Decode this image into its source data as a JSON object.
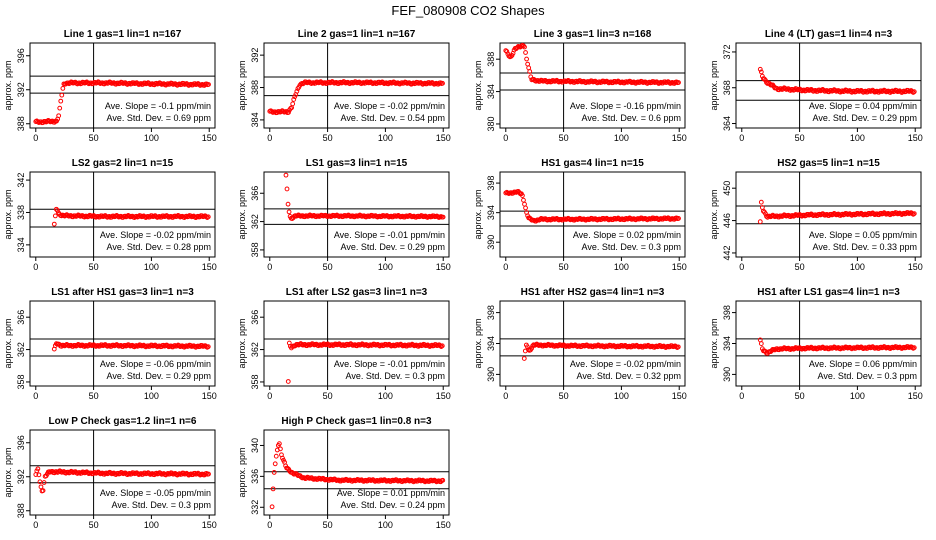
{
  "figure": {
    "title": "FEF_080908  CO2 Shapes"
  },
  "chart_data": [
    {
      "type": "scatter",
      "title": "Line 1 gas=1 lin=1 n=167",
      "ylabel": "approx. ppm",
      "xlim": [
        -5,
        155
      ],
      "ylim": [
        387.5,
        397.5
      ],
      "xticks": [
        0,
        50,
        100,
        150
      ],
      "yticks": [
        388,
        392,
        396
      ],
      "hlines": [
        393.6,
        391.6
      ],
      "vline": 50,
      "slope_text": "Ave. Slope = -0.1  ppm/min",
      "std_text": "Ave. Std. Dev. = 0.69  ppm",
      "shape": [
        [
          0,
          388.2
        ],
        [
          18,
          388.3
        ],
        [
          20,
          389
        ],
        [
          22,
          391
        ],
        [
          24,
          392.6
        ],
        [
          26,
          392.8
        ],
        [
          60,
          392.8
        ],
        [
          100,
          392.7
        ],
        [
          150,
          392.6
        ]
      ],
      "color": "#ff0000"
    },
    {
      "type": "scatter",
      "title": "Line 2 gas=1 lin=1 n=167",
      "ylabel": "approx. ppm",
      "xlim": [
        -5,
        155
      ],
      "ylim": [
        383,
        393.5
      ],
      "xticks": [
        0,
        50,
        100,
        150
      ],
      "yticks": [
        384,
        388,
        392
      ],
      "hlines": [
        389.3,
        387
      ],
      "vline": 50,
      "slope_text": "Ave. Slope = -0.02  ppm/min",
      "std_text": "Ave. Std. Dev. = 0.54  ppm",
      "shape": [
        [
          0,
          385
        ],
        [
          16,
          385
        ],
        [
          19,
          385.6
        ],
        [
          22,
          387
        ],
        [
          26,
          388.4
        ],
        [
          30,
          388.6
        ],
        [
          80,
          388.6
        ],
        [
          150,
          388.5
        ]
      ],
      "color": "#ff0000"
    },
    {
      "type": "scatter",
      "title": "Line 3 gas=1 lin=3 n=168",
      "ylabel": "approx. ppm",
      "xlim": [
        -5,
        155
      ],
      "ylim": [
        379.5,
        390
      ],
      "xticks": [
        0,
        50,
        100,
        150
      ],
      "yticks": [
        380,
        384,
        388
      ],
      "hlines": [
        386.3,
        384.2
      ],
      "vline": 50,
      "slope_text": "Ave. Slope = -0.16  ppm/min",
      "std_text": "Ave. Std. Dev. = 0.6  ppm",
      "shape": [
        [
          0,
          389
        ],
        [
          4,
          388.2
        ],
        [
          8,
          389.3
        ],
        [
          12,
          389.5
        ],
        [
          16,
          389.8
        ],
        [
          18,
          388
        ],
        [
          20,
          386.8
        ],
        [
          22,
          385.5
        ],
        [
          30,
          385.3
        ],
        [
          80,
          385.2
        ],
        [
          150,
          385.1
        ]
      ],
      "color": "#ff0000"
    },
    {
      "type": "scatter",
      "title": "Line 4 (LT) gas=1 lin=4 n=3",
      "ylabel": "approx. ppm",
      "xlim": [
        -5,
        155
      ],
      "ylim": [
        363.5,
        373
      ],
      "xticks": [
        0,
        50,
        100,
        150
      ],
      "yticks": [
        364,
        368,
        372
      ],
      "hlines": [
        368.8,
        366.6
      ],
      "vline": 50,
      "slope_text": "Ave. Slope = 0.04  ppm/min",
      "std_text": "Ave. Std. Dev. = 0.29  ppm",
      "shape": [
        [
          16,
          370
        ],
        [
          18,
          369.2
        ],
        [
          22,
          368.6
        ],
        [
          30,
          367.9
        ],
        [
          60,
          367.7
        ],
        [
          100,
          367.6
        ],
        [
          150,
          367.6
        ]
      ],
      "color": "#ff0000"
    },
    {
      "type": "scatter",
      "title": "LS2 gas=2 lin=1 n=15",
      "ylabel": "approx. ppm",
      "xlim": [
        -5,
        155
      ],
      "ylim": [
        332.5,
        343
      ],
      "xticks": [
        0,
        50,
        100,
        150
      ],
      "yticks": [
        334,
        338,
        342
      ],
      "hlines": [
        338.4,
        336.2
      ],
      "vline": 50,
      "slope_text": "Ave. Slope = -0.02  ppm/min",
      "std_text": "Ave. Std. Dev. = 0.28  ppm",
      "shape": [
        [
          16,
          336.5
        ],
        [
          18,
          338.6
        ],
        [
          20,
          337.8
        ],
        [
          24,
          337.6
        ],
        [
          60,
          337.5
        ],
        [
          150,
          337.5
        ]
      ],
      "color": "#ff0000"
    },
    {
      "type": "scatter",
      "title": "LS1 gas=3 lin=1 n=15",
      "ylabel": "approx. ppm",
      "xlim": [
        -5,
        155
      ],
      "ylim": [
        357,
        369
      ],
      "xticks": [
        0,
        50,
        100,
        150
      ],
      "yticks": [
        358,
        362,
        366
      ],
      "hlines": [
        363.8,
        361.6
      ],
      "vline": 50,
      "slope_text": "Ave. Slope = -0.01  ppm/min",
      "std_text": "Ave. Std. Dev. = 0.29  ppm",
      "shape": [
        [
          14,
          368.5
        ],
        [
          16,
          364
        ],
        [
          18,
          362.4
        ],
        [
          22,
          362.8
        ],
        [
          60,
          362.8
        ],
        [
          150,
          362.7
        ]
      ],
      "color": "#ff0000"
    },
    {
      "type": "scatter",
      "title": "HS1 gas=4 lin=1 n=15",
      "ylabel": "approx. ppm",
      "xlim": [
        -5,
        155
      ],
      "ylim": [
        388,
        399.5
      ],
      "xticks": [
        0,
        50,
        100,
        150
      ],
      "yticks": [
        390,
        394,
        398
      ],
      "hlines": [
        394.2,
        392.2
      ],
      "vline": 50,
      "slope_text": "Ave. Slope = 0.02  ppm/min",
      "std_text": "Ave. Std. Dev. = 0.3  ppm",
      "shape": [
        [
          0,
          396.6
        ],
        [
          10,
          396.8
        ],
        [
          14,
          396.5
        ],
        [
          16,
          395.4
        ],
        [
          18,
          394
        ],
        [
          20,
          393.2
        ],
        [
          24,
          392.9
        ],
        [
          30,
          393.1
        ],
        [
          60,
          393.1
        ],
        [
          150,
          393.2
        ]
      ],
      "color": "#ff0000"
    },
    {
      "type": "scatter",
      "title": "HS2 gas=5 lin=1 n=15",
      "ylabel": "approx. ppm",
      "xlim": [
        -5,
        155
      ],
      "ylim": [
        441.5,
        452
      ],
      "xticks": [
        0,
        50,
        100,
        150
      ],
      "yticks": [
        442,
        446,
        450
      ],
      "hlines": [
        447.8,
        445.6
      ],
      "vline": 50,
      "slope_text": "Ave. Slope = 0.05  ppm/min",
      "std_text": "Ave. Std. Dev. = 0.33  ppm",
      "shape": [
        [
          16,
          445.8
        ],
        [
          17,
          448.4
        ],
        [
          18,
          447.4
        ],
        [
          22,
          446.5
        ],
        [
          60,
          446.7
        ],
        [
          150,
          446.9
        ]
      ],
      "color": "#ff0000"
    },
    {
      "type": "scatter",
      "title": "LS1 after HS1 gas=3 lin=1 n=3",
      "ylabel": "approx. ppm",
      "xlim": [
        -5,
        155
      ],
      "ylim": [
        357.5,
        368
      ],
      "xticks": [
        0,
        50,
        100,
        150
      ],
      "yticks": [
        358,
        362,
        366
      ],
      "hlines": [
        363.3,
        361.2
      ],
      "vline": 50,
      "slope_text": "Ave. Slope = -0.06  ppm/min",
      "std_text": "Ave. Std. Dev. = 0.29  ppm",
      "shape": [
        [
          16,
          362
        ],
        [
          18,
          362.8
        ],
        [
          22,
          362.5
        ],
        [
          60,
          362.5
        ],
        [
          150,
          362.4
        ]
      ],
      "color": "#ff0000"
    },
    {
      "type": "scatter",
      "title": "LS1 after LS2 gas=3 lin=1 n=3",
      "ylabel": "approx. ppm",
      "xlim": [
        -5,
        155
      ],
      "ylim": [
        357.5,
        368
      ],
      "xticks": [
        0,
        50,
        100,
        150
      ],
      "yticks": [
        358,
        362,
        366
      ],
      "hlines": [
        363.3,
        361.2
      ],
      "vline": 50,
      "slope_text": "Ave. Slope = -0.01  ppm/min",
      "std_text": "Ave. Std. Dev. = 0.3  ppm",
      "shape": [
        [
          16,
          358
        ],
        [
          17,
          363.2
        ],
        [
          18,
          362.2
        ],
        [
          22,
          362.6
        ],
        [
          60,
          362.6
        ],
        [
          150,
          362.5
        ]
      ],
      "color": "#ff0000"
    },
    {
      "type": "scatter",
      "title": "HS1 after HS2 gas=4 lin=1 n=3",
      "ylabel": "approx. ppm",
      "xlim": [
        -5,
        155
      ],
      "ylim": [
        388.5,
        399.5
      ],
      "xticks": [
        0,
        50,
        100,
        150
      ],
      "yticks": [
        390,
        394,
        398
      ],
      "hlines": [
        394.6,
        392.4
      ],
      "vline": 50,
      "slope_text": "Ave. Slope = -0.02  ppm/min",
      "std_text": "Ave. Std. Dev. = 0.32  ppm",
      "shape": [
        [
          16,
          392
        ],
        [
          18,
          394
        ],
        [
          20,
          393
        ],
        [
          24,
          393.8
        ],
        [
          60,
          393.7
        ],
        [
          150,
          393.6
        ]
      ],
      "color": "#ff0000"
    },
    {
      "type": "scatter",
      "title": "HS1 after LS1 gas=4 lin=1 n=3",
      "ylabel": "approx. ppm",
      "xlim": [
        -5,
        155
      ],
      "ylim": [
        388.5,
        399.5
      ],
      "xticks": [
        0,
        50,
        100,
        150
      ],
      "yticks": [
        390,
        394,
        398
      ],
      "hlines": [
        394.6,
        392.4
      ],
      "vline": 50,
      "slope_text": "Ave. Slope = 0.06  ppm/min",
      "std_text": "Ave. Std. Dev. = 0.3  ppm",
      "shape": [
        [
          16,
          394.4
        ],
        [
          18,
          393.2
        ],
        [
          22,
          392.8
        ],
        [
          30,
          393.3
        ],
        [
          60,
          393.4
        ],
        [
          150,
          393.5
        ]
      ],
      "color": "#ff0000"
    },
    {
      "type": "scatter",
      "title": "Low P Check gas=1.2 lin=1 n=6",
      "ylabel": "approx. ppm",
      "xlim": [
        -5,
        155
      ],
      "ylim": [
        387.5,
        397.5
      ],
      "xticks": [
        0,
        50,
        100,
        150
      ],
      "yticks": [
        388,
        392,
        396
      ],
      "hlines": [
        393.3,
        391.3
      ],
      "vline": 50,
      "slope_text": "Ave. Slope = -0.05  ppm/min",
      "std_text": "Ave. Std. Dev. = 0.3  ppm",
      "shape": [
        [
          0,
          392.2
        ],
        [
          2,
          393
        ],
        [
          4,
          391
        ],
        [
          6,
          390.2
        ],
        [
          8,
          392
        ],
        [
          12,
          392.6
        ],
        [
          60,
          392.4
        ],
        [
          150,
          392.3
        ]
      ],
      "color": "#ff0000"
    },
    {
      "type": "scatter",
      "title": "High P Check gas=1 lin=0.8 n=3",
      "ylabel": "approx. ppm",
      "xlim": [
        -5,
        155
      ],
      "ylim": [
        331,
        342
      ],
      "xticks": [
        0,
        50,
        100,
        150
      ],
      "yticks": [
        332,
        336,
        340
      ],
      "hlines": [
        336.6,
        334.4
      ],
      "vline": 50,
      "slope_text": "Ave. Slope = 0.01  ppm/min",
      "std_text": "Ave. Std. Dev. = 0.24  ppm",
      "shape": [
        [
          2,
          332
        ],
        [
          4,
          337
        ],
        [
          6,
          339
        ],
        [
          8,
          340.6
        ],
        [
          10,
          338.8
        ],
        [
          14,
          337.2
        ],
        [
          20,
          336.4
        ],
        [
          30,
          335.8
        ],
        [
          60,
          335.5
        ],
        [
          150,
          335.4
        ]
      ],
      "color": "#ff0000"
    }
  ]
}
